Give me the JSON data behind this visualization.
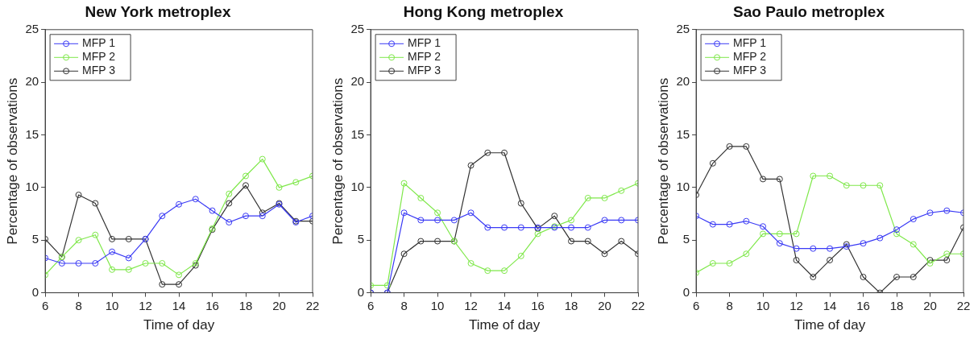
{
  "chart_data": [
    {
      "type": "line",
      "title": "New York metroplex",
      "xlabel": "Time of day",
      "ylabel": "Percentage of observations",
      "x": [
        6,
        7,
        8,
        9,
        10,
        11,
        12,
        13,
        14,
        15,
        16,
        17,
        18,
        19,
        20,
        21,
        22
      ],
      "xlim": [
        6,
        22
      ],
      "xticks": [
        6,
        8,
        10,
        12,
        14,
        16,
        18,
        20,
        22
      ],
      "ylim": [
        0,
        25
      ],
      "yticks": [
        0,
        5,
        10,
        15,
        20,
        25
      ],
      "grid": false,
      "legend": "top left",
      "marker": "circle",
      "line_style": "solid",
      "series": [
        {
          "name": "MFP 1",
          "color": "#3a3af5",
          "values": [
            3.3,
            2.8,
            2.8,
            2.8,
            3.9,
            3.3,
            5.1,
            7.3,
            8.4,
            8.9,
            7.8,
            6.7,
            7.3,
            7.3,
            8.4,
            6.7,
            7.3
          ]
        },
        {
          "name": "MFP 2",
          "color": "#7fe84a",
          "values": [
            1.7,
            3.4,
            5.0,
            5.5,
            2.2,
            2.2,
            2.8,
            2.8,
            1.7,
            2.8,
            6.1,
            9.4,
            11.1,
            12.7,
            10.0,
            10.5,
            11.1
          ]
        },
        {
          "name": "MFP 3",
          "color": "#333333",
          "values": [
            5.1,
            3.4,
            9.3,
            8.5,
            5.1,
            5.1,
            5.1,
            0.8,
            0.8,
            2.6,
            6.0,
            8.5,
            10.2,
            7.6,
            8.5,
            6.8,
            6.8
          ]
        }
      ]
    },
    {
      "type": "line",
      "title": "Hong Kong metroplex",
      "xlabel": "Time of day",
      "ylabel": "Percentage of observations",
      "x": [
        6,
        7,
        8,
        9,
        10,
        11,
        12,
        13,
        14,
        15,
        16,
        17,
        18,
        19,
        20,
        21,
        22
      ],
      "xlim": [
        6,
        22
      ],
      "xticks": [
        6,
        8,
        10,
        12,
        14,
        16,
        18,
        20,
        22
      ],
      "ylim": [
        0,
        25
      ],
      "yticks": [
        0,
        5,
        10,
        15,
        20,
        25
      ],
      "grid": false,
      "legend": "top left",
      "marker": "circle",
      "line_style": "solid",
      "series": [
        {
          "name": "MFP 1",
          "color": "#3a3af5",
          "values": [
            0,
            0,
            7.6,
            6.9,
            6.9,
            6.9,
            7.6,
            6.2,
            6.2,
            6.2,
            6.2,
            6.2,
            6.2,
            6.2,
            6.9,
            6.9,
            6.9
          ]
        },
        {
          "name": "MFP 2",
          "color": "#7fe84a",
          "values": [
            0.7,
            0.7,
            10.4,
            9.0,
            7.6,
            4.9,
            2.8,
            2.1,
            2.1,
            3.5,
            5.6,
            6.3,
            6.9,
            9.0,
            9.0,
            9.7,
            10.4
          ]
        },
        {
          "name": "MFP 3",
          "color": "#333333",
          "values": [
            0,
            0,
            3.7,
            4.9,
            4.9,
            4.9,
            12.1,
            13.3,
            13.3,
            8.5,
            6.1,
            7.3,
            4.9,
            4.9,
            3.7,
            4.9,
            3.7
          ]
        }
      ]
    },
    {
      "type": "line",
      "title": "Sao Paulo metroplex",
      "xlabel": "Time of day",
      "ylabel": "Percentage of observations",
      "x": [
        6,
        7,
        8,
        9,
        10,
        11,
        12,
        13,
        14,
        15,
        16,
        17,
        18,
        19,
        20,
        21,
        22
      ],
      "xlim": [
        6,
        22
      ],
      "xticks": [
        6,
        8,
        10,
        12,
        14,
        16,
        18,
        20,
        22
      ],
      "ylim": [
        0,
        25
      ],
      "yticks": [
        0,
        5,
        10,
        15,
        20,
        25
      ],
      "grid": false,
      "legend": "top left",
      "marker": "circle",
      "line_style": "solid",
      "series": [
        {
          "name": "MFP 1",
          "color": "#3a3af5",
          "values": [
            7.3,
            6.5,
            6.5,
            6.8,
            6.3,
            4.7,
            4.2,
            4.2,
            4.2,
            4.4,
            4.7,
            5.2,
            6.0,
            7.0,
            7.6,
            7.8,
            7.6
          ]
        },
        {
          "name": "MFP 2",
          "color": "#7fe84a",
          "values": [
            1.9,
            2.8,
            2.8,
            3.7,
            5.6,
            5.6,
            5.6,
            11.1,
            11.1,
            10.2,
            10.2,
            10.2,
            5.6,
            4.6,
            2.8,
            3.7,
            3.7
          ]
        },
        {
          "name": "MFP 3",
          "color": "#333333",
          "values": [
            9.3,
            12.3,
            13.9,
            13.9,
            10.8,
            10.8,
            3.1,
            1.5,
            3.1,
            4.6,
            1.5,
            0,
            1.5,
            1.5,
            3.1,
            3.1,
            6.2
          ]
        }
      ]
    }
  ]
}
